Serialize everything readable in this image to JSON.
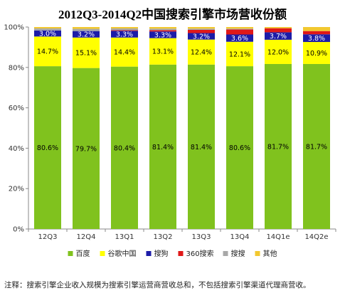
{
  "chart_data": {
    "type": "bar",
    "stacked": true,
    "percent": true,
    "title": "2012Q3-2014Q2中国搜索引擎市场营收份额",
    "categories": [
      "12Q3",
      "12Q4",
      "13Q1",
      "13Q2",
      "13Q3",
      "13Q4",
      "14Q1e",
      "14Q2e"
    ],
    "ylim": [
      0,
      100
    ],
    "yticks": [
      "0%",
      "20%",
      "40%",
      "60%",
      "80%",
      "100%"
    ],
    "grid": false,
    "legend_position": "bottom",
    "series": [
      {
        "name": "百度",
        "color": "#80c21e",
        "values": [
          80.6,
          79.7,
          80.4,
          81.4,
          81.4,
          80.6,
          81.7,
          81.7
        ],
        "labels": [
          "80.6%",
          "79.7%",
          "80.4%",
          "81.4%",
          "81.4%",
          "80.6%",
          "81.7%",
          "81.7%"
        ]
      },
      {
        "name": "谷歌中国",
        "color": "#ffff00",
        "values": [
          14.7,
          15.1,
          14.4,
          13.1,
          12.4,
          12.1,
          12.0,
          10.9
        ],
        "labels": [
          "14.7%",
          "15.1%",
          "14.4%",
          "13.1%",
          "12.4%",
          "12.1%",
          "12.0%",
          "10.9%"
        ]
      },
      {
        "name": "搜狗",
        "color": "#1c1ca8",
        "values": [
          3.0,
          3.2,
          3.3,
          3.3,
          3.2,
          3.6,
          3.7,
          3.8
        ],
        "labels": [
          "3.0%",
          "3.2%",
          "3.3%",
          "3.3%",
          "3.2%",
          "3.6%",
          "3.7%",
          "3.8%"
        ]
      },
      {
        "name": "360搜索",
        "color": "#e01818",
        "values": [
          0.0,
          0.0,
          0.3,
          0.6,
          1.6,
          2.5,
          2.0,
          1.6
        ],
        "labels": []
      },
      {
        "name": "搜搜",
        "color": "#a8a8a8",
        "values": [
          1.0,
          1.1,
          0.9,
          0.8,
          0.6,
          0.4,
          0.0,
          0.0
        ],
        "labels": []
      },
      {
        "name": "其他",
        "color": "#f2c830",
        "values": [
          0.7,
          0.9,
          0.7,
          0.8,
          0.8,
          0.8,
          0.6,
          2.0
        ],
        "labels": []
      }
    ]
  },
  "note": "注释：搜索引擎企业收入规模为搜索引擎运营商营收总和，不包括搜索引擎渠道代理商营收。"
}
